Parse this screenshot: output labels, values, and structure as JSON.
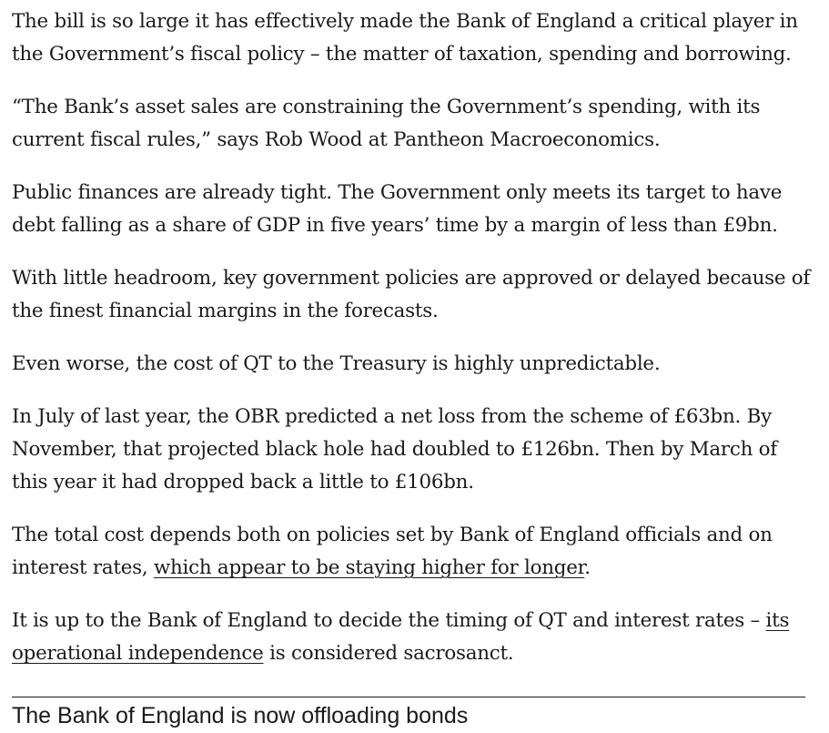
{
  "paragraphs": [
    {
      "text": "The bill is so large it has effectively made the Bank of England a critical player in the Government’s fiscal policy – the matter of taxation, spending and borrowing."
    },
    {
      "text": "“The Bank’s asset sales are constraining the Government’s spending, with its current fiscal rules,” says Rob Wood at Pantheon Macroeconomics."
    },
    {
      "text": "Public finances are already tight. The Government only meets its target to have debt falling as a share of GDP in five years’ time by a margin of less than £9bn."
    },
    {
      "text": "With little headroom, key government policies are approved or delayed because of the finest financial margins in the forecasts."
    },
    {
      "text": "Even worse, the cost of QT to the Treasury is highly unpredictable."
    },
    {
      "text": "In July of last year, the OBR predicted a net loss from the scheme of £63bn. By November, that projected black hole had doubled to £126bn. Then by March of this year it had dropped back a little to £106bn."
    },
    {
      "before": "The total cost depends both on policies set by Bank of England officials and on interest rates, ",
      "link": "which appear to be staying higher for longer",
      "after": "."
    },
    {
      "before": "It is up to the Bank of England to decide the timing of QT and interest rates – ",
      "link": "its operational independence",
      "after": " is considered sacrosanct."
    }
  ],
  "section_heading": "The Bank of England is now offloading bonds"
}
